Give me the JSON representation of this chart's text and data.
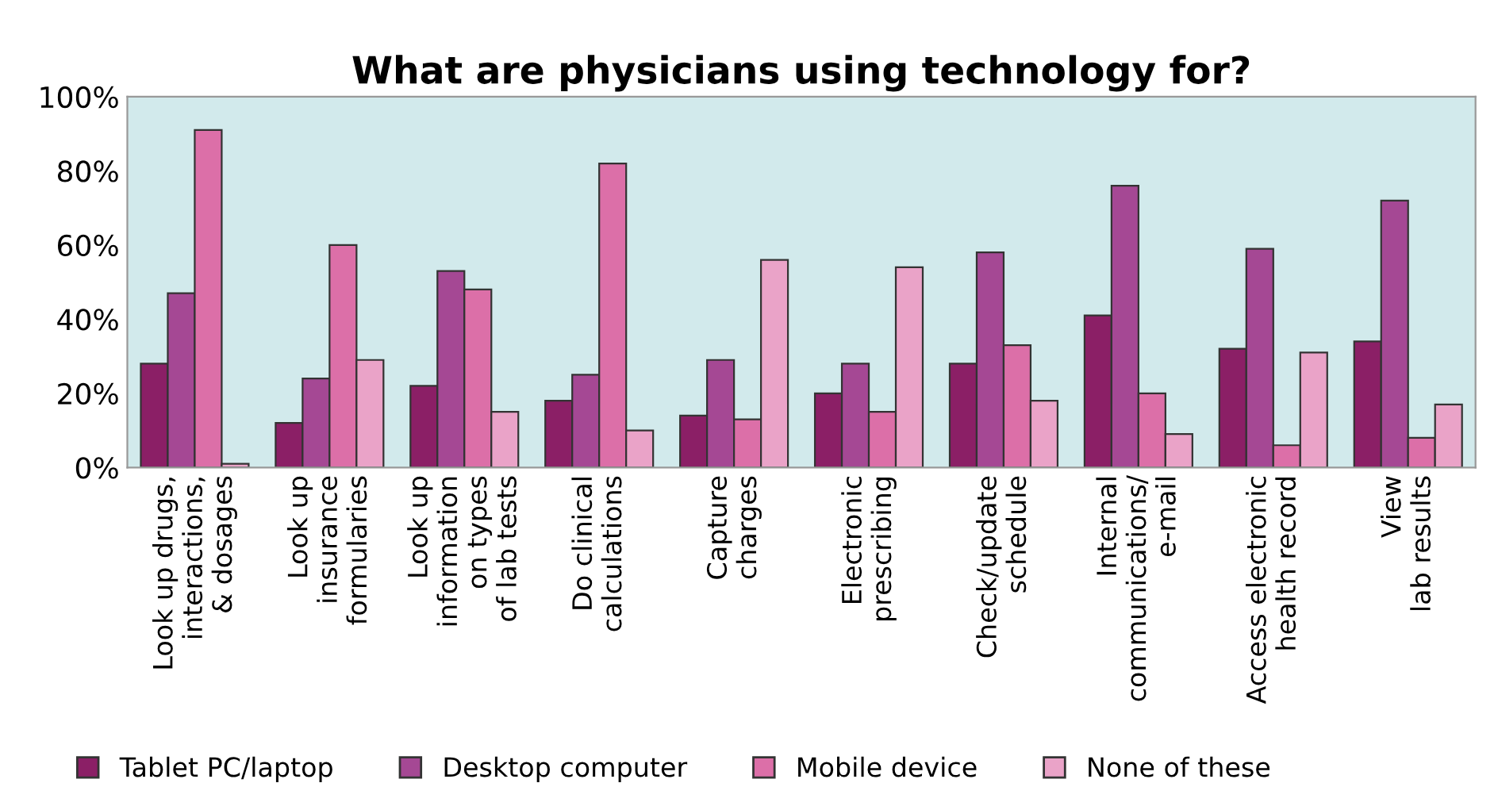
{
  "chart_data": {
    "type": "bar",
    "title": "What are physicians using technology for?",
    "categories": [
      "Look up drugs,\ninteractions,\n& dosages",
      "Look up\ninsurance\nformularies",
      "Look up\ninformation\non types\nof lab tests",
      "Do clinical\ncalculations",
      "Capture\ncharges",
      "Electronic\nprescribing",
      "Check/update\nschedule",
      "Internal\ncommunications/\ne-mail",
      "Access electronic\nhealth record",
      "View\nlab results"
    ],
    "series": [
      {
        "name": "Tablet PC/laptop",
        "color": "#8b1f66",
        "values": [
          28,
          12,
          22,
          18,
          14,
          20,
          28,
          41,
          32,
          34
        ]
      },
      {
        "name": "Desktop computer",
        "color": "#a54894",
        "values": [
          47,
          24,
          53,
          25,
          29,
          28,
          58,
          76,
          59,
          72
        ]
      },
      {
        "name": "Mobile device",
        "color": "#dc6fa8",
        "values": [
          91,
          60,
          48,
          82,
          13,
          15,
          33,
          20,
          6,
          8
        ]
      },
      {
        "name": "None of these",
        "color": "#eaa3c8",
        "values": [
          1,
          29,
          15,
          10,
          56,
          54,
          18,
          9,
          31,
          17
        ]
      }
    ],
    "ylim": [
      0,
      100
    ],
    "yticks": [
      {
        "value": 0,
        "label": "0%"
      },
      {
        "value": 20,
        "label": "20%"
      },
      {
        "value": 40,
        "label": "40%"
      },
      {
        "value": 60,
        "label": "60%"
      },
      {
        "value": 80,
        "label": "80%"
      },
      {
        "value": 100,
        "label": "100%"
      }
    ],
    "grid": false,
    "legend": "bottom"
  }
}
